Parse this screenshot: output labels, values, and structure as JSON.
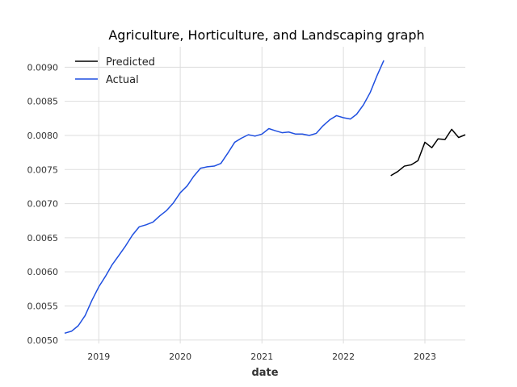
{
  "chart_data": {
    "type": "line",
    "title": "Agriculture, Horticulture, and Landscaping graph",
    "xlabel": "date",
    "ylabel": "",
    "xlim": [
      "2018-08-01",
      "2023-07-01"
    ],
    "ylim": [
      0.00495,
      0.0093
    ],
    "x_ticks": [
      "2019",
      "2020",
      "2021",
      "2022",
      "2023"
    ],
    "y_ticks": [
      0.005,
      0.0055,
      0.006,
      0.0065,
      0.007,
      0.0075,
      0.008,
      0.0085,
      0.009
    ],
    "grid": true,
    "legend_position": "top-left",
    "series": [
      {
        "name": "Predicted",
        "color": "#000000",
        "x": [
          "2022-08",
          "2022-09",
          "2022-10",
          "2022-11",
          "2022-12",
          "2023-01",
          "2023-02",
          "2023-03",
          "2023-04",
          "2023-05",
          "2023-06",
          "2023-07"
        ],
        "values": [
          0.00741,
          0.00747,
          0.00755,
          0.00757,
          0.00763,
          0.0079,
          0.00782,
          0.00795,
          0.00794,
          0.00809,
          0.00797,
          0.00801
        ]
      },
      {
        "name": "Actual",
        "color": "#1f4fe0",
        "x": [
          "2018-08",
          "2018-09",
          "2018-10",
          "2018-11",
          "2018-12",
          "2019-01",
          "2019-02",
          "2019-03",
          "2019-04",
          "2019-05",
          "2019-06",
          "2019-07",
          "2019-08",
          "2019-09",
          "2019-10",
          "2019-11",
          "2019-12",
          "2020-01",
          "2020-02",
          "2020-03",
          "2020-04",
          "2020-05",
          "2020-06",
          "2020-07",
          "2020-08",
          "2020-09",
          "2020-10",
          "2020-11",
          "2020-12",
          "2021-01",
          "2021-02",
          "2021-03",
          "2021-04",
          "2021-05",
          "2021-06",
          "2021-07",
          "2021-08",
          "2021-09",
          "2021-10",
          "2021-11",
          "2021-12",
          "2022-01",
          "2022-02",
          "2022-03",
          "2022-04",
          "2022-05",
          "2022-06",
          "2022-07"
        ],
        "values": [
          0.0051,
          0.00513,
          0.00521,
          0.00536,
          0.00558,
          0.00578,
          0.00594,
          0.0061,
          0.00624,
          0.00638,
          0.00654,
          0.00666,
          0.00669,
          0.00673,
          0.00682,
          0.0069,
          0.00701,
          0.00716,
          0.00726,
          0.0074,
          0.00752,
          0.00754,
          0.00755,
          0.00759,
          0.00774,
          0.0079,
          0.00796,
          0.00801,
          0.00799,
          0.00802,
          0.0081,
          0.00807,
          0.00804,
          0.00805,
          0.00802,
          0.00802,
          0.008,
          0.00803,
          0.00814,
          0.00823,
          0.00829,
          0.00826,
          0.00824,
          0.00831,
          0.00845,
          0.00863,
          0.00888,
          0.0091
        ]
      }
    ]
  }
}
